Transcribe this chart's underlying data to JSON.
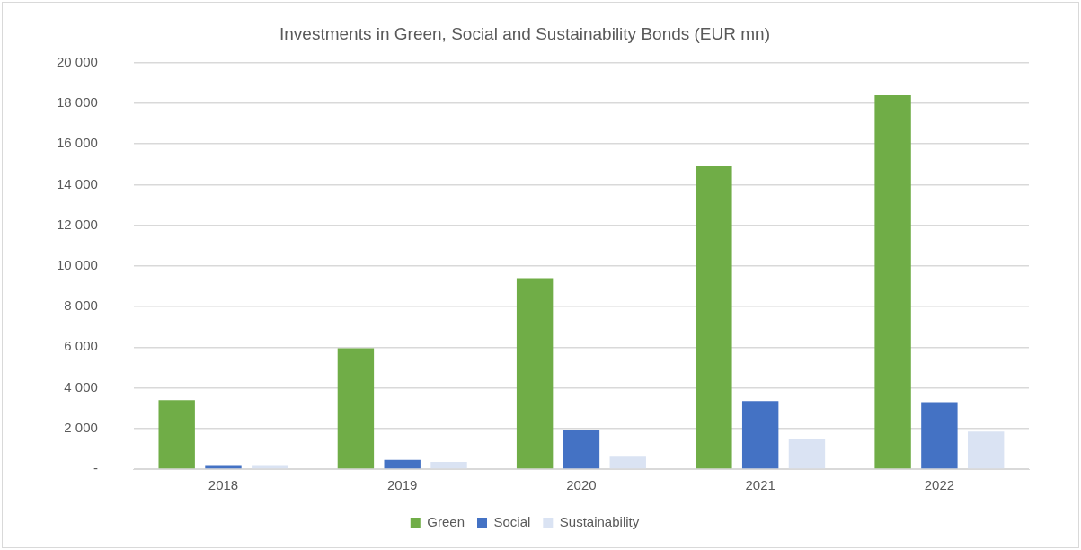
{
  "chart_data": {
    "type": "bar",
    "title": "Investments in Green, Social and Sustainability Bonds (EUR mn)",
    "categories": [
      "2018",
      "2019",
      "2020",
      "2021",
      "2022"
    ],
    "series": [
      {
        "name": "Green",
        "color": "#70ad47",
        "values": [
          3400,
          5950,
          9400,
          14900,
          18400
        ]
      },
      {
        "name": "Social",
        "color": "#4472c4",
        "values": [
          200,
          450,
          1900,
          3350,
          3300
        ]
      },
      {
        "name": "Sustainability",
        "color": "#dae3f3",
        "values": [
          200,
          350,
          650,
          1500,
          1850
        ]
      }
    ],
    "ylim": [
      0,
      20000
    ],
    "yticks": [
      {
        "value": 0,
        "label": "-"
      },
      {
        "value": 2000,
        "label": "2 000"
      },
      {
        "value": 4000,
        "label": "4 000"
      },
      {
        "value": 6000,
        "label": "6 000"
      },
      {
        "value": 8000,
        "label": "8 000"
      },
      {
        "value": 10000,
        "label": "10 000"
      },
      {
        "value": 12000,
        "label": "12 000"
      },
      {
        "value": 14000,
        "label": "14 000"
      },
      {
        "value": 16000,
        "label": "16 000"
      },
      {
        "value": 18000,
        "label": "18 000"
      },
      {
        "value": 20000,
        "label": "20 000"
      }
    ],
    "grid": "y",
    "legend": "bottom"
  }
}
